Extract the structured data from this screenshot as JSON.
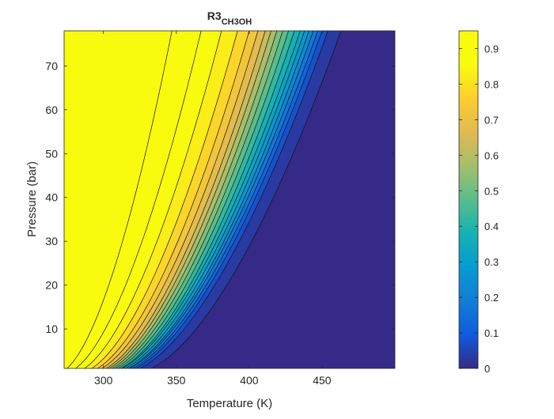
{
  "chart_data": {
    "type": "contour",
    "title": "R3",
    "title_subscript": "CH3OH",
    "xlabel": "Temperature (K)",
    "ylabel": "Pressure (bar)",
    "xlim": [
      273,
      500
    ],
    "ylim": [
      1,
      78
    ],
    "xticks": [
      300,
      350,
      400,
      450
    ],
    "yticks": [
      10,
      20,
      30,
      40,
      50,
      60,
      70
    ],
    "colorbar": {
      "range": [
        0,
        0.95
      ],
      "ticks": [
        0,
        0.1,
        0.2,
        0.3,
        0.4,
        0.5,
        0.6,
        0.7,
        0.8,
        0.9
      ],
      "colormap": "parula"
    },
    "contour_levels": [
      0.95,
      0.9,
      0.85,
      0.8,
      0.75,
      0.7,
      0.65,
      0.6,
      0.55,
      0.5,
      0.45,
      0.4,
      0.35,
      0.3,
      0.25,
      0.2,
      0.15,
      0.1,
      0.05,
      0.01
    ],
    "contour_temperature_at_top_pressure": [
      347,
      367,
      381,
      392,
      400,
      406,
      411,
      415,
      419,
      423,
      427,
      431,
      435,
      438,
      441,
      444,
      447,
      450,
      454,
      463
    ],
    "contour_temperature_at_bottom_pressure": [
      275,
      281,
      287,
      292,
      296,
      299,
      302,
      304,
      306,
      308,
      310,
      312,
      313,
      315,
      317,
      318,
      320,
      322,
      325,
      333
    ]
  }
}
